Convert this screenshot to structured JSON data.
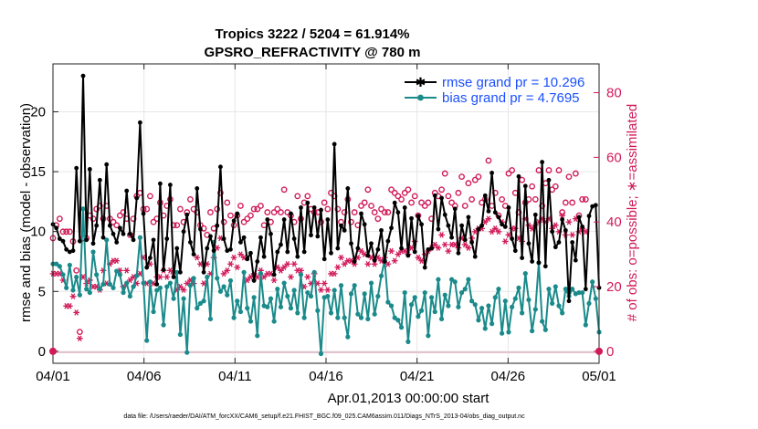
{
  "chart_data": {
    "type": "line",
    "title": "Tropics 3222 / 5204 = 61.914%",
    "subtitle": "GPSRO_REFRACTIVITY @ 780 m",
    "xlabel": "Apr.01,2013 00:00:00 start",
    "ylabel": "rmse and bias (model - observation)",
    "ylabel_right": "# of obs: o=possible; ∗=assimilated",
    "footnote": "data file: /Users/raeder/DAI/ATM_forcXX/CAM6_setup/f.e21.FHIST_BGC.f09_025.CAM6assim.011/Diags_NTrS_2013-04/obs_diag_output.nc",
    "xlim": [
      0,
      30
    ],
    "ylim": [
      -1,
      24
    ],
    "ylim_right": [
      -3.7,
      88.9
    ],
    "x_tick_values": [
      0,
      5,
      10,
      15,
      20,
      25,
      30
    ],
    "x_tick_labels": [
      "04/01",
      "04/06",
      "04/11",
      "04/16",
      "04/21",
      "04/26",
      "05/01"
    ],
    "y_tick_labels": [
      "0",
      "5",
      "10",
      "15",
      "20"
    ],
    "y_right_tick_labels": [
      "0",
      "20",
      "40",
      "60",
      "80"
    ],
    "colors": {
      "rmse": "#000000",
      "bias": "#1a8a8a",
      "obs": "#d11a5a",
      "legend_text": "#1a4fff"
    },
    "series": [
      {
        "name": "rmse grand pr = 10.296",
        "color": "#000000",
        "values": [
          10.6,
          10.3,
          9.4,
          9.2,
          8.5,
          8.3,
          8.4,
          15.3,
          9.2,
          23.0,
          9.3,
          15.2,
          9.0,
          10.5,
          14.3,
          9.5,
          15.6,
          10.5,
          9.8,
          9.1,
          10.3,
          9.8,
          13.4,
          9.8,
          9.3,
          12.8,
          19.1,
          11.5,
          7.0,
          7.8,
          9.3,
          5.6,
          14.0,
          6.8,
          9.4,
          13.9,
          6.2,
          8.6,
          6.6,
          10.0,
          11.4,
          9.1,
          8.1,
          13.6,
          10.2,
          6.6,
          8.6,
          9.6,
          8.4,
          10.5,
          15.4,
          9.4,
          8.4,
          8.5,
          10.9,
          11.5,
          9.1,
          9.5,
          7.7,
          8.2,
          5.9,
          7.5,
          9.5,
          7.9,
          11.0,
          9.8,
          6.4,
          8.3,
          8.9,
          11.0,
          8.3,
          11.5,
          9.4,
          7.9,
          12.0,
          8.3,
          12.4,
          9.7,
          12.0,
          9.6,
          11.8,
          7.7,
          11.0,
          8.2,
          17.3,
          8.6,
          10.5,
          10.1,
          13.6,
          9.0,
          7.5,
          8.6,
          11.5,
          10.6,
          8.0,
          9.0,
          7.6,
          8.5,
          10.1,
          7.5,
          9.2,
          10.3,
          12.4,
          11.6,
          8.6,
          12.0,
          8.0,
          11.1,
          8.3,
          11.3,
          10.6,
          7.0,
          8.5,
          8.6,
          13.0,
          10.2,
          12.8,
          11.4,
          10.5,
          9.5,
          11.9,
          8.2,
          10.5,
          9.3,
          11.2,
          9.1,
          7.9,
          10.2,
          10.5,
          13.0,
          11.7,
          14.9,
          11.6,
          11.2,
          10.6,
          10.4,
          12.0,
          9.4,
          8.4,
          14.6,
          7.8,
          13.8,
          9.0,
          7.5,
          11.4,
          7.4,
          15.8,
          7.1,
          14.3,
          10.0,
          8.7,
          9.1,
          11.0,
          10.1,
          4.2,
          9.1,
          7.6,
          11.2,
          10.4,
          5.2,
          11.3,
          12.1,
          12.2,
          5.3
        ]
      },
      {
        "name": "bias grand pr = 4.7695",
        "color": "#1a8a8a",
        "values": [
          7.3,
          7.3,
          7.1,
          6.4,
          5.3,
          7.2,
          5.1,
          6.2,
          4.7,
          11.9,
          5.2,
          4.9,
          8.3,
          6.4,
          5.2,
          5.6,
          9.3,
          5.6,
          5.3,
          6.7,
          6.4,
          4.9,
          5.7,
          4.6,
          5.4,
          6.3,
          9.5,
          5.7,
          0.9,
          5.8,
          3.3,
          5.1,
          5.3,
          2.2,
          5.4,
          5.7,
          4.4,
          6.6,
          1.4,
          4.4,
          -0.1,
          5.5,
          6.1,
          3.6,
          4.0,
          4.2,
          6.2,
          2.7,
          9.1,
          6.1,
          5.0,
          5.4,
          4.7,
          5.9,
          2.8,
          4.2,
          3.3,
          6.6,
          3.6,
          2.5,
          4.5,
          1.3,
          6.5,
          3.8,
          3.7,
          4.4,
          2.5,
          5.2,
          3.7,
          5.7,
          4.6,
          3.6,
          5.1,
          3.2,
          6.4,
          2.8,
          4.9,
          4.6,
          6.6,
          3.4,
          -0.2,
          4.5,
          4.6,
          3.2,
          5.1,
          2.8,
          5.5,
          2.8,
          1.2,
          4.8,
          5.5,
          3.1,
          2.8,
          4.8,
          2.7,
          5.7,
          3.1,
          4.6,
          6.3,
          7.6,
          4.1,
          3.8,
          2.8,
          2.6,
          2.0,
          4.9,
          0.8,
          3.9,
          4.5,
          2.9,
          3.4,
          4.9,
          1.3,
          4.5,
          3.3,
          6.0,
          2.7,
          4.7,
          3.8,
          6.0,
          5.8,
          3.7,
          4.9,
          5.2,
          6.0,
          4.2,
          3.9,
          2.6,
          3.6,
          1.9,
          3.8,
          2.3,
          4.5,
          5.2,
          1.5,
          4.2,
          1.6,
          3.7,
          4.4,
          5.3,
          3.2,
          6.5,
          4.3,
          1.7,
          3.5,
          7.4,
          2.5,
          1.8,
          5.2,
          4.0,
          5.4,
          3.8,
          3.2,
          5.2,
          4.6,
          5.2,
          4.8,
          4.9,
          4.9,
          2.2,
          4.0,
          5.8,
          4.4,
          1.6
        ]
      },
      {
        "name": "# of obs possible",
        "color": "#d11a5a",
        "marker": "o",
        "axis": "right",
        "values": [
          35,
          39,
          41,
          37,
          37,
          37,
          34,
          25,
          6,
          35,
          35,
          42,
          41,
          44,
          45,
          41,
          45,
          41,
          40,
          39,
          42,
          43,
          41,
          36,
          41,
          48,
          49,
          44,
          44,
          48,
          40,
          41,
          46,
          42,
          45,
          47,
          39,
          39,
          44,
          40,
          43,
          47,
          44,
          43,
          39,
          38,
          36,
          43,
          38,
          44,
          49,
          40,
          46,
          42,
          39,
          42,
          45,
          40,
          41,
          42,
          44,
          44,
          45,
          39,
          43,
          40,
          43,
          44,
          43,
          50,
          43,
          42,
          40,
          48,
          41,
          46,
          48,
          44,
          43,
          43,
          40,
          46,
          44,
          49,
          48,
          44,
          40,
          43,
          47,
          40,
          43,
          39,
          45,
          46,
          50,
          45,
          43,
          41,
          44,
          43,
          43,
          50,
          49,
          48,
          47,
          49,
          50,
          46,
          48,
          42,
          46,
          45,
          46,
          41,
          49,
          48,
          50,
          55,
          48,
          46,
          45,
          49,
          54,
          45,
          52,
          47,
          53,
          54,
          46,
          47,
          59,
          45,
          49,
          42,
          47,
          45,
          55,
          56,
          49,
          43,
          53,
          46,
          47,
          51,
          47,
          56,
          45,
          52,
          56,
          50,
          51,
          56,
          43,
          46,
          54,
          46,
          55,
          42,
          47,
          47
        ]
      },
      {
        "name": "# of obs assimilated",
        "color": "#d11a5a",
        "marker": "*",
        "axis": "right",
        "values": [
          24,
          24,
          24,
          22,
          14,
          14,
          17,
          12,
          4,
          23,
          21,
          22,
          20,
          20,
          19,
          25,
          21,
          27,
          28,
          28,
          25,
          20,
          25,
          22,
          23,
          21,
          24,
          29,
          21,
          27,
          21,
          23,
          23,
          25,
          23,
          25,
          24,
          19,
          20,
          19,
          21,
          22,
          21,
          29,
          27,
          21,
          27,
          24,
          29,
          32,
          35,
          24,
          25,
          27,
          29,
          26,
          30,
          29,
          22,
          23,
          24,
          23,
          25,
          23,
          24,
          24,
          22,
          26,
          25,
          26,
          27,
          23,
          27,
          25,
          25,
          20,
          23,
          21,
          24,
          21,
          19,
          21,
          19,
          24,
          24,
          26,
          29,
          27,
          28,
          28,
          27,
          29,
          31,
          30,
          27,
          29,
          27,
          29,
          28,
          29,
          27,
          31,
          28,
          30,
          31,
          31,
          30,
          32,
          34,
          29,
          28,
          30,
          31,
          32,
          33,
          32,
          36,
          33,
          31,
          33,
          33,
          32,
          35,
          33,
          32,
          35,
          37,
          38,
          38,
          40,
          41,
          37,
          38,
          37,
          40,
          34,
          36,
          38,
          38,
          35,
          34,
          41,
          39,
          38,
          39,
          40,
          41,
          40,
          41,
          38,
          39,
          37,
          42,
          36,
          40,
          36,
          41,
          37,
          38,
          37
        ]
      }
    ]
  },
  "legend": [
    {
      "label": "rmse grand pr = 10.296"
    },
    {
      "label": "bias grand pr = 4.7695"
    }
  ]
}
